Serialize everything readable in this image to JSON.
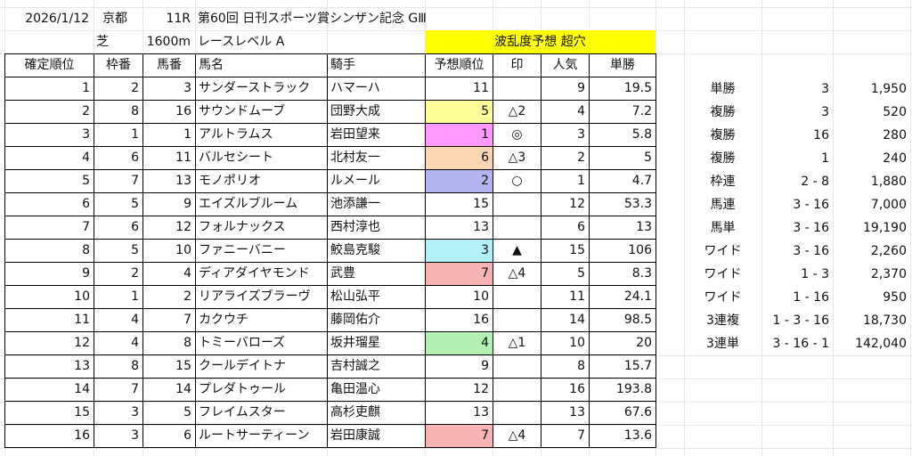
{
  "header": {
    "date": "2026/1/12",
    "venue": "京都",
    "race_no": "11R",
    "race_name": "第60回 日刊スポーツ賞シンザン記念 GⅢ",
    "surface": "芝",
    "distance": "1600m",
    "race_level": "レースレベル A",
    "volatility": "波乱度予想 超穴"
  },
  "columns": [
    "確定順位",
    "枠番",
    "馬番",
    "馬名",
    "騎手",
    "予想順位",
    "印",
    "人気",
    "単勝"
  ],
  "rows": [
    {
      "finish": "1",
      "gate": "2",
      "horse_no": "3",
      "name": "サンダーストラック",
      "jockey": "ハマーハ",
      "pred": "11",
      "mark": "",
      "pop": "9",
      "odds": "19.5",
      "color": ""
    },
    {
      "finish": "2",
      "gate": "8",
      "horse_no": "16",
      "name": "サウンドムーブ",
      "jockey": "団野大成",
      "pred": "5",
      "mark": "△2",
      "pop": "4",
      "odds": "7.2",
      "color": "#ffff99"
    },
    {
      "finish": "3",
      "gate": "1",
      "horse_no": "1",
      "name": "アルトラムス",
      "jockey": "岩田望来",
      "pred": "1",
      "mark": "◎",
      "pop": "3",
      "odds": "5.8",
      "color": "#ff99ff"
    },
    {
      "finish": "4",
      "gate": "6",
      "horse_no": "11",
      "name": "バルセシート",
      "jockey": "北村友一",
      "pred": "6",
      "mark": "△3",
      "pop": "2",
      "odds": "5",
      "color": "#fcd5b4"
    },
    {
      "finish": "5",
      "gate": "7",
      "horse_no": "13",
      "name": "モノポリオ",
      "jockey": "ルメール",
      "pred": "2",
      "mark": "○",
      "pop": "1",
      "odds": "4.7",
      "color": "#b4b4f0"
    },
    {
      "finish": "6",
      "gate": "5",
      "horse_no": "9",
      "name": "エイズルブルーム",
      "jockey": "池添謙一",
      "pred": "15",
      "mark": "",
      "pop": "12",
      "odds": "53.3",
      "color": ""
    },
    {
      "finish": "7",
      "gate": "6",
      "horse_no": "12",
      "name": "フォルナックス",
      "jockey": "西村淳也",
      "pred": "13",
      "mark": "",
      "pop": "6",
      "odds": "13",
      "color": ""
    },
    {
      "finish": "8",
      "gate": "5",
      "horse_no": "10",
      "name": "ファニーバニー",
      "jockey": "鮫島克駿",
      "pred": "3",
      "mark": "▲",
      "pop": "15",
      "odds": "106",
      "color": "#b4f0f8"
    },
    {
      "finish": "9",
      "gate": "2",
      "horse_no": "4",
      "name": "ディアダイヤモンド",
      "jockey": "武豊",
      "pred": "7",
      "mark": "△4",
      "pop": "5",
      "odds": "8.3",
      "color": "#f8b4b4"
    },
    {
      "finish": "10",
      "gate": "1",
      "horse_no": "2",
      "name": "リアライズブラーヴ",
      "jockey": "松山弘平",
      "pred": "10",
      "mark": "",
      "pop": "11",
      "odds": "24.1",
      "color": ""
    },
    {
      "finish": "11",
      "gate": "4",
      "horse_no": "7",
      "name": "カクウチ",
      "jockey": "藤岡佑介",
      "pred": "16",
      "mark": "",
      "pop": "14",
      "odds": "98.5",
      "color": ""
    },
    {
      "finish": "12",
      "gate": "4",
      "horse_no": "8",
      "name": "トミーバローズ",
      "jockey": "坂井瑠星",
      "pred": "4",
      "mark": "△1",
      "pop": "10",
      "odds": "20",
      "color": "#b4f0b4"
    },
    {
      "finish": "13",
      "gate": "8",
      "horse_no": "15",
      "name": "クールデイトナ",
      "jockey": "吉村誠之",
      "pred": "9",
      "mark": "",
      "pop": "8",
      "odds": "15.7",
      "color": ""
    },
    {
      "finish": "14",
      "gate": "7",
      "horse_no": "14",
      "name": "プレダトゥール",
      "jockey": "亀田温心",
      "pred": "12",
      "mark": "",
      "pop": "16",
      "odds": "193.8",
      "color": ""
    },
    {
      "finish": "15",
      "gate": "3",
      "horse_no": "5",
      "name": "フレイムスター",
      "jockey": "高杉吏麒",
      "pred": "13",
      "mark": "",
      "pop": "13",
      "odds": "67.6",
      "color": ""
    },
    {
      "finish": "16",
      "gate": "3",
      "horse_no": "6",
      "name": "ルートサーティーン",
      "jockey": "岩田康誠",
      "pred": "7",
      "mark": "△4",
      "pop": "7",
      "odds": "13.6",
      "color": "#f8b4b4"
    }
  ],
  "payouts": [
    {
      "type": "単勝",
      "combo": "3",
      "amount": "1,950"
    },
    {
      "type": "複勝",
      "combo": "3",
      "amount": "520"
    },
    {
      "type": "複勝",
      "combo": "16",
      "amount": "280"
    },
    {
      "type": "複勝",
      "combo": "1",
      "amount": "240"
    },
    {
      "type": "枠連",
      "combo": "2 - 8",
      "amount": "1,880"
    },
    {
      "type": "馬連",
      "combo": "3 - 16",
      "amount": "7,000"
    },
    {
      "type": "馬単",
      "combo": "3 - 16",
      "amount": "19,190"
    },
    {
      "type": "ワイド",
      "combo": "3 - 16",
      "amount": "2,260"
    },
    {
      "type": "ワイド",
      "combo": "1 - 3",
      "amount": "2,370"
    },
    {
      "type": "ワイド",
      "combo": "1 - 16",
      "amount": "950"
    },
    {
      "type": "3連複",
      "combo": "1 - 3 - 16",
      "amount": "18,730"
    },
    {
      "type": "3連単",
      "combo": "3 - 16 - 1",
      "amount": "142,040"
    }
  ]
}
